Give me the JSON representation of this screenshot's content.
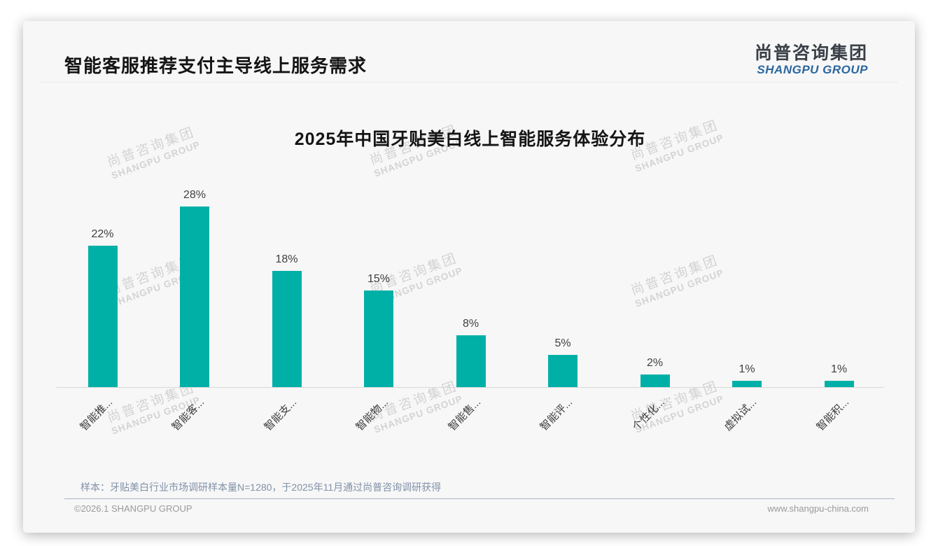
{
  "page": {
    "title": "智能客服推荐支付主导线上服务需求",
    "logo": {
      "cn": "尚普咨询集团",
      "en": "SHANGPU GROUP"
    },
    "watermark": {
      "line1": "尚普咨询集团",
      "line2": "SHANGPU GROUP"
    },
    "note": "样本：牙贴美白行业市场调研样本量N=1280，于2025年11月通过尚普咨询调研获得",
    "footer": {
      "left": "©2026.1 SHANGPU GROUP",
      "right": "www.shangpu-china.com"
    }
  },
  "chart_data": {
    "type": "bar",
    "title": "2025年中国牙贴美白线上智能服务体验分布",
    "categories": [
      "智能推...",
      "智能客...",
      "智能支...",
      "智能物...",
      "智能售...",
      "智能评...",
      "个性化...",
      "虚拟试...",
      "智能积..."
    ],
    "values": [
      22,
      28,
      18,
      15,
      8,
      5,
      2,
      1,
      1
    ],
    "unit": "%",
    "data_labels": [
      "22%",
      "28%",
      "18%",
      "15%",
      "8%",
      "5%",
      "2%",
      "1%",
      "1%"
    ],
    "bar_color": "#00b0a7",
    "value_label_color": "#404040",
    "axis_line_color": "#d9d9d9",
    "ylim": [
      0,
      30
    ],
    "grid": false,
    "legend": "none",
    "xlabel": "",
    "ylabel": ""
  }
}
